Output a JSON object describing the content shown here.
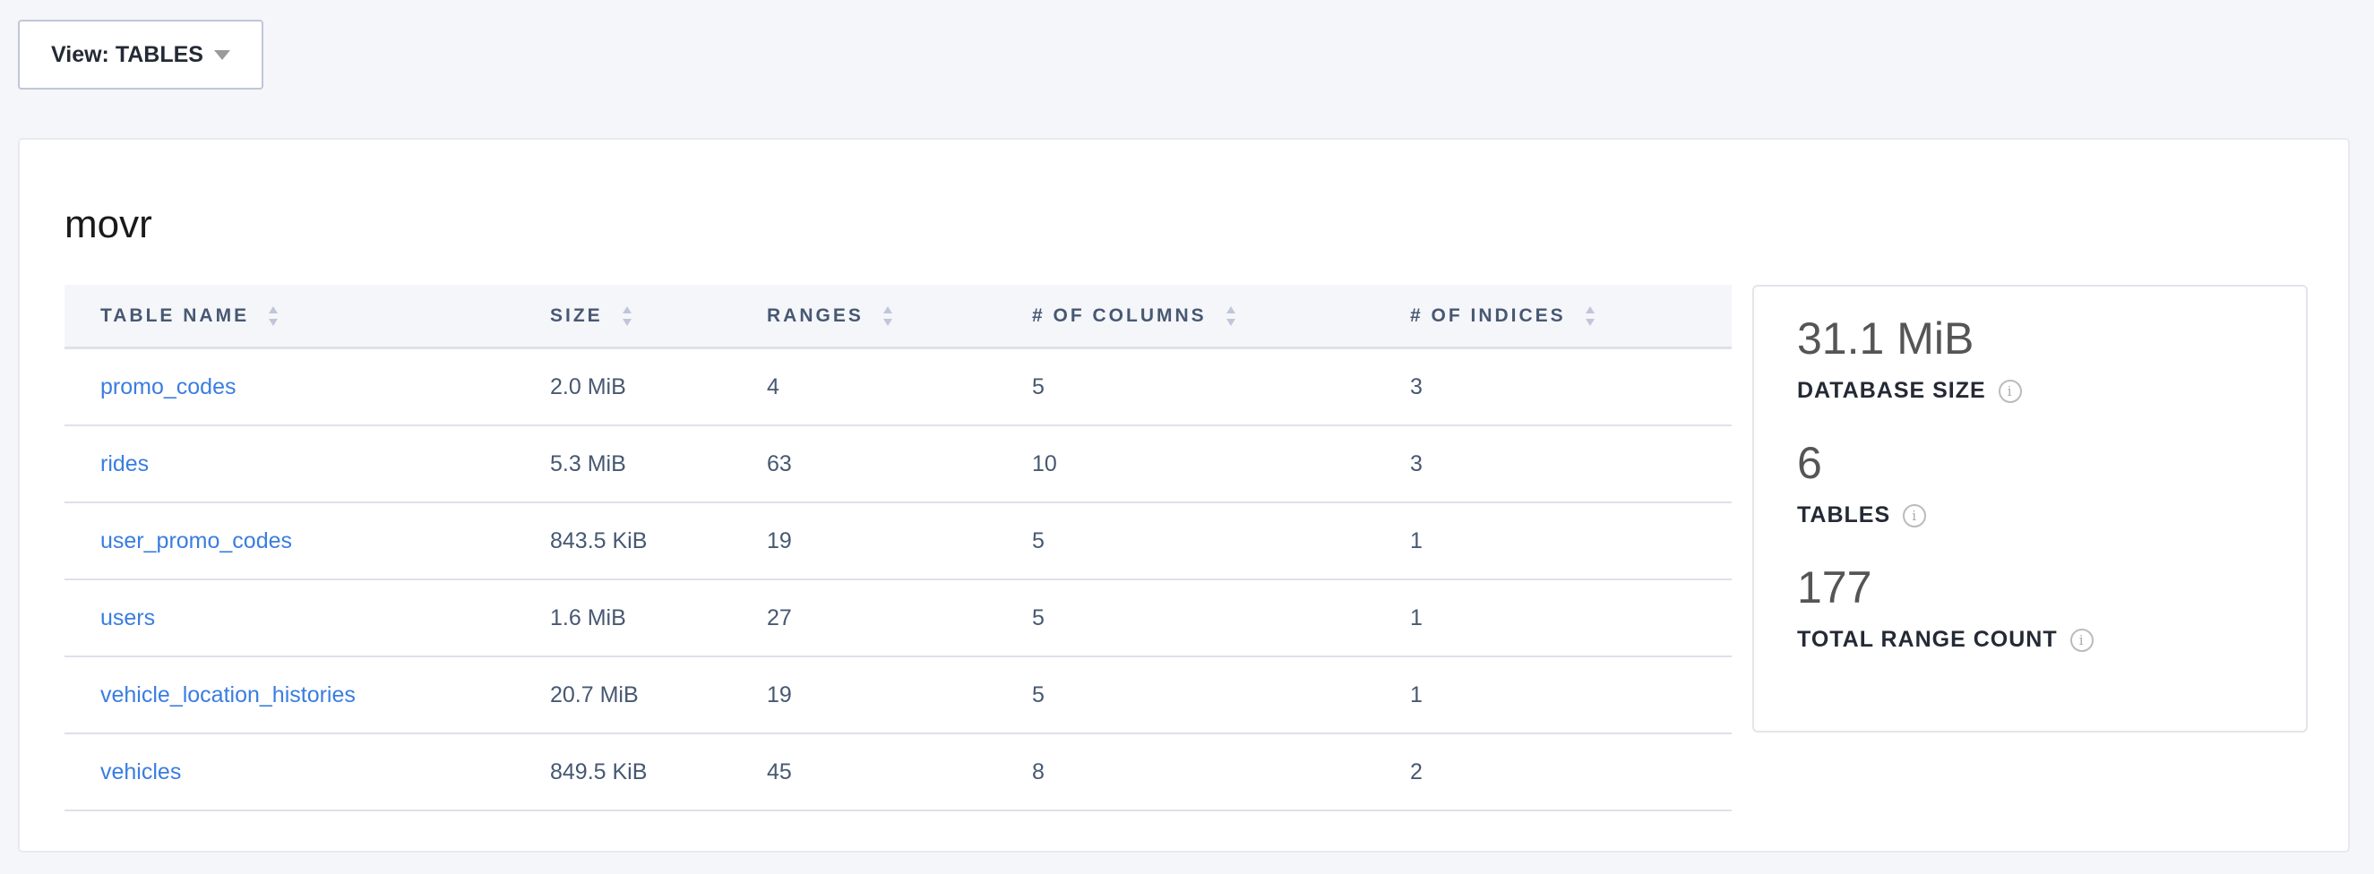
{
  "view_selector": {
    "label": "View: TABLES"
  },
  "database": {
    "name": "movr"
  },
  "table": {
    "columns": [
      "TABLE NAME",
      "SIZE",
      "RANGES",
      "# OF COLUMNS",
      "# OF INDICES"
    ],
    "rows": [
      [
        "promo_codes",
        "2.0 MiB",
        "4",
        "5",
        "3"
      ],
      [
        "rides",
        "5.3 MiB",
        "63",
        "10",
        "3"
      ],
      [
        "user_promo_codes",
        "843.5 KiB",
        "19",
        "5",
        "1"
      ],
      [
        "users",
        "1.6 MiB",
        "27",
        "5",
        "1"
      ],
      [
        "vehicle_location_histories",
        "20.7 MiB",
        "19",
        "5",
        "1"
      ],
      [
        "vehicles",
        "849.5 KiB",
        "45",
        "8",
        "2"
      ]
    ]
  },
  "stats": [
    {
      "value": "31.1 MiB",
      "label": "DATABASE SIZE"
    },
    {
      "value": "6",
      "label": "TABLES"
    },
    {
      "value": "177",
      "label": "TOTAL RANGE COUNT"
    }
  ],
  "colors": {
    "link": "#3a7de1",
    "header_bg": "#f5f6fa",
    "text": "#475872"
  },
  "icons": {
    "sort": "sort-arrows-icon",
    "info": "info-circle-icon",
    "dropdown": "caret-down-icon"
  }
}
